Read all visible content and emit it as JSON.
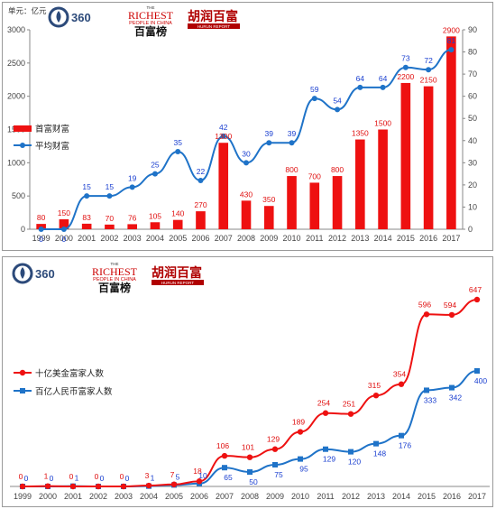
{
  "charts": [
    {
      "unit": "单元：亿元",
      "logos": {
        "brand_360": "360",
        "richest_the": "THE",
        "richest": "RICHEST",
        "richest_sub": "PEOPLE IN CHINA",
        "richest_cn": "百富榜",
        "hurun_cn": "胡润百富",
        "hurun_en": "HURUN REPORT"
      }
    },
    {
      "logos": {
        "brand_360": "360",
        "richest_the": "THE",
        "richest": "RICHEST",
        "richest_sub": "PEOPLE IN CHINA",
        "richest_cn": "百富榜",
        "hurun_cn": "胡润百富",
        "hurun_en": "HURUN REPORT"
      }
    }
  ],
  "chart_data": [
    {
      "type": "bar",
      "categories": [
        "1999",
        "2000",
        "2001",
        "2002",
        "2003",
        "2004",
        "2005",
        "2006",
        "2007",
        "2008",
        "2009",
        "2010",
        "2011",
        "2012",
        "2013",
        "2014",
        "2015",
        "2016",
        "2017"
      ],
      "series": [
        {
          "name": "首富财富",
          "type": "bar",
          "axis": "left",
          "color": "#ee1111",
          "values": [
            80,
            150,
            83,
            70,
            76,
            105,
            140,
            270,
            1300,
            430,
            350,
            800,
            700,
            800,
            1350,
            1500,
            2200,
            2150,
            2900
          ]
        },
        {
          "name": "平均财富",
          "type": "line",
          "axis": "right",
          "color": "#1f73c8",
          "values": [
            0,
            0,
            15,
            15,
            19,
            25,
            35,
            22,
            42,
            30,
            39,
            39,
            59,
            54,
            64,
            64,
            73,
            72,
            81
          ]
        }
      ],
      "y_left": {
        "ylim": [
          0,
          3000
        ],
        "ticks": [
          0,
          500,
          1000,
          1500,
          2000,
          2500,
          3000
        ]
      },
      "y_right": {
        "ylim": [
          0,
          90
        ],
        "ticks": [
          0,
          10,
          20,
          30,
          40,
          50,
          60,
          70,
          80,
          90
        ]
      },
      "legend_position": "left"
    },
    {
      "type": "line",
      "categories": [
        "1999",
        "2000",
        "2001",
        "2002",
        "2003",
        "2004",
        "2005",
        "2006",
        "2007",
        "2008",
        "2009",
        "2010",
        "2011",
        "2012",
        "2013",
        "2014",
        "2015",
        "2016",
        "2017"
      ],
      "series": [
        {
          "name": "十亿美金富家人数",
          "color": "#ee1111",
          "marker": "circle",
          "values": [
            0,
            1,
            0,
            0,
            0,
            3,
            7,
            18,
            106,
            101,
            129,
            189,
            254,
            251,
            315,
            354,
            596,
            594,
            647
          ]
        },
        {
          "name": "百亿人民币富家人数",
          "color": "#1f73c8",
          "marker": "square",
          "values": [
            0,
            0,
            1,
            0,
            0,
            1,
            5,
            10,
            65,
            50,
            75,
            95,
            129,
            120,
            148,
            176,
            333,
            342,
            400
          ]
        }
      ],
      "ylim": [
        0,
        700
      ],
      "legend_position": "left"
    }
  ]
}
